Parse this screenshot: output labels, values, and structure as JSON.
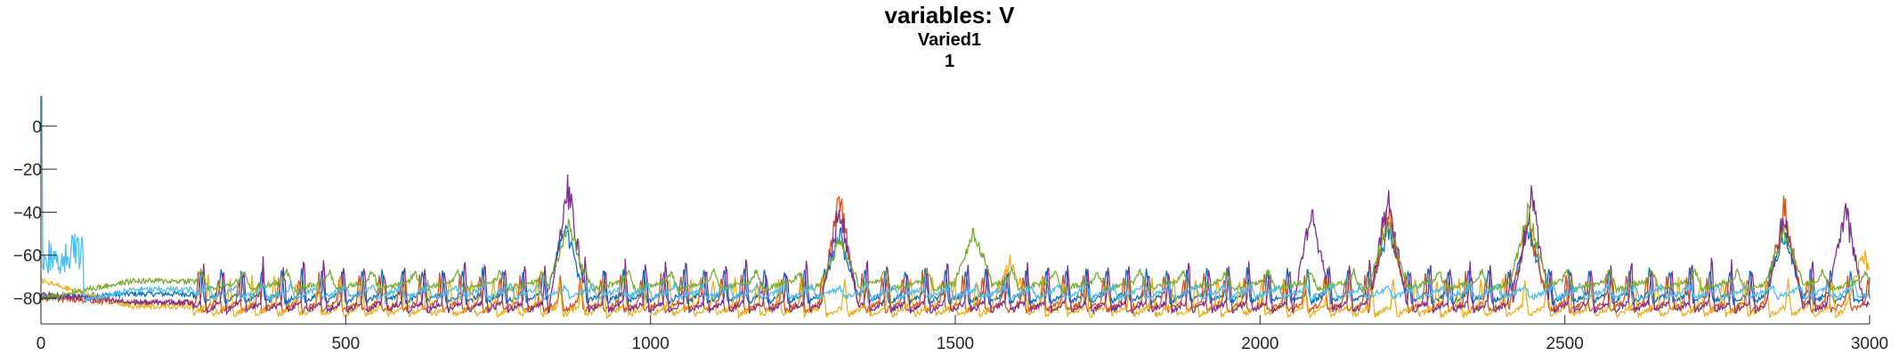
{
  "title": "variables: V",
  "subtitle": "Varied1",
  "subtitle2": "1",
  "chart_data": {
    "type": "line",
    "xlim": [
      0,
      3000
    ],
    "ylim": [
      -92,
      14
    ],
    "xticks": [
      0,
      500,
      1000,
      1500,
      2000,
      2500,
      3000
    ],
    "yticks": [
      0,
      -20,
      -40,
      -60,
      -80
    ],
    "grid": false,
    "series": [
      {
        "color": "#0072BD",
        "baseline": -78,
        "period": 33,
        "phase": 5,
        "peaks": [
          -66,
          -62
        ],
        "start_level": -80,
        "big": [
          [
            860,
            -40
          ],
          [
            1310,
            -45
          ],
          [
            2210,
            -42
          ],
          [
            2440,
            -42
          ],
          [
            2860,
            -45
          ]
        ]
      },
      {
        "color": "#D95319",
        "baseline": -82,
        "period": 33,
        "phase": 10,
        "peaks": [
          -72,
          -55
        ],
        "start_level": -80,
        "big": [
          [
            1310,
            -25
          ],
          [
            2210,
            -30
          ],
          [
            2440,
            -38
          ],
          [
            2860,
            -30
          ]
        ]
      },
      {
        "color": "#EDB120",
        "baseline": -84,
        "period": 36,
        "phase": 18,
        "peaks": [
          -72,
          -60
        ],
        "start_level": -72,
        "big": [
          [
            1590,
            -58
          ],
          [
            2990,
            -55
          ]
        ]
      },
      {
        "color": "#7E2F8E",
        "baseline": -82,
        "period": 33,
        "phase": 2,
        "peaks": [
          -68,
          -30
        ],
        "start_level": -78,
        "big": [
          [
            865,
            -18
          ],
          [
            1310,
            -30
          ],
          [
            2085,
            -30
          ],
          [
            2210,
            -22
          ],
          [
            2445,
            -25
          ],
          [
            2860,
            -35
          ],
          [
            2960,
            -30
          ]
        ]
      },
      {
        "color": "#77AC30",
        "baseline": -72,
        "period": 70,
        "phase": 25,
        "peaks": [
          -68,
          -62
        ],
        "start_level": -80,
        "big": [
          [
            865,
            -40
          ],
          [
            1310,
            -50
          ],
          [
            1530,
            -45
          ],
          [
            2210,
            -40
          ],
          [
            2440,
            -35
          ],
          [
            2860,
            -45
          ]
        ]
      },
      {
        "color": "#4DBEEE",
        "baseline": -76,
        "period": 45,
        "phase": 0,
        "peaks": [
          -74,
          -73
        ],
        "start_level": -86,
        "big": []
      }
    ]
  }
}
